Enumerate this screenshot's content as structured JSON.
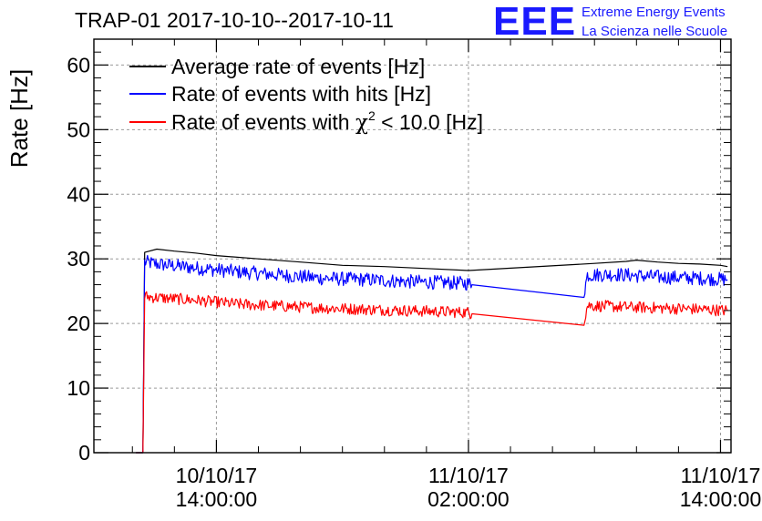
{
  "header": {
    "title": "TRAP-01 2017-10-10--2017-10-11",
    "logo_text": "EEE",
    "logo_line1": "Extreme Energy Events",
    "logo_line2": "La Scienza nelle Scuole",
    "logo_color": "#1a1aff"
  },
  "chart_data": {
    "type": "line",
    "title": "TRAP-01 2017-10-10--2017-10-11",
    "xlabel": "",
    "ylabel": "Rate [Hz]",
    "ylim": [
      0,
      64
    ],
    "yticks": [
      0,
      10,
      20,
      30,
      40,
      50,
      60
    ],
    "xlim": [
      "2017-10-10 08:10",
      "2017-10-11 14:30"
    ],
    "xticks": [
      {
        "t": "2017-10-10 14:00",
        "line1": "10/10/17",
        "line2": "14:00:00"
      },
      {
        "t": "2017-10-11 02:00",
        "line1": "11/10/17",
        "line2": "02:00:00"
      },
      {
        "t": "2017-10-11 14:00",
        "line1": "11/10/17",
        "line2": "14:00:00"
      }
    ],
    "grid": true,
    "legend_position": "top-left",
    "legend": [
      {
        "label": "Average rate of events [Hz]",
        "color": "#000000"
      },
      {
        "label": "Rate of events with hits [Hz]",
        "color": "#0000ff"
      },
      {
        "label_pre": "Rate of events with ",
        "label_chi": "χ",
        "label_sup": "2",
        "label_post": " < 10.0 [Hz]",
        "color": "#ff0000"
      }
    ],
    "series": [
      {
        "color": "#000000",
        "noise": 0,
        "x": [
          "2017-10-10 10:10",
          "2017-10-10 10:30",
          "2017-10-10 10:35",
          "2017-10-10 11:10",
          "2017-10-10 12:00",
          "2017-10-10 13:00",
          "2017-10-10 14:00",
          "2017-10-10 16:00",
          "2017-10-10 18:00",
          "2017-10-10 20:00",
          "2017-10-10 22:00",
          "2017-10-11 00:00",
          "2017-10-11 02:00",
          "2017-10-11 08:00",
          "2017-10-11 09:30",
          "2017-10-11 10:00",
          "2017-10-11 11:00",
          "2017-10-11 12:00",
          "2017-10-11 13:00",
          "2017-10-11 14:00",
          "2017-10-11 14:20"
        ],
        "y": [
          0,
          0,
          31,
          31.5,
          31.2,
          30.9,
          30.5,
          30.0,
          29.5,
          29.0,
          28.8,
          28.5,
          28.2,
          29.3,
          29.6,
          29.8,
          29.5,
          29.3,
          29.2,
          29.0,
          28.8
        ]
      },
      {
        "color": "#0000ff",
        "noise": 1.1,
        "x": [
          "2017-10-10 10:10",
          "2017-10-10 10:30",
          "2017-10-10 10:35",
          "2017-10-10 11:10",
          "2017-10-10 13:00",
          "2017-10-10 15:00",
          "2017-10-10 17:00",
          "2017-10-10 19:00",
          "2017-10-10 21:00",
          "2017-10-10 23:00",
          "2017-10-11 01:00",
          "2017-10-11 02:00",
          "2017-10-11 02:10",
          "2017-10-11 07:30",
          "2017-10-11 07:40",
          "2017-10-11 09:00",
          "2017-10-11 11:00",
          "2017-10-11 13:00",
          "2017-10-11 14:20"
        ],
        "y": [
          0,
          0,
          29.5,
          29.2,
          28.6,
          28.0,
          27.5,
          27.0,
          26.8,
          26.5,
          26.3,
          26.2,
          26.0,
          24.8,
          27.5,
          27.6,
          27.2,
          27.0,
          26.8
        ]
      },
      {
        "color": "#ff0000",
        "noise": 0.9,
        "x": [
          "2017-10-10 10:10",
          "2017-10-10 10:30",
          "2017-10-10 10:35",
          "2017-10-10 11:10",
          "2017-10-10 13:00",
          "2017-10-10 15:00",
          "2017-10-10 17:00",
          "2017-10-10 19:00",
          "2017-10-10 21:00",
          "2017-10-10 23:00",
          "2017-10-11 01:00",
          "2017-10-11 02:00",
          "2017-10-11 02:10",
          "2017-10-11 07:30",
          "2017-10-11 07:40",
          "2017-10-11 09:00",
          "2017-10-11 11:00",
          "2017-10-11 13:00",
          "2017-10-11 14:20"
        ],
        "y": [
          0,
          0,
          24.2,
          24.0,
          23.6,
          23.0,
          22.7,
          22.4,
          22.2,
          22.0,
          21.8,
          21.7,
          21.5,
          20.3,
          22.8,
          22.6,
          22.4,
          22.2,
          22.0
        ]
      }
    ]
  }
}
